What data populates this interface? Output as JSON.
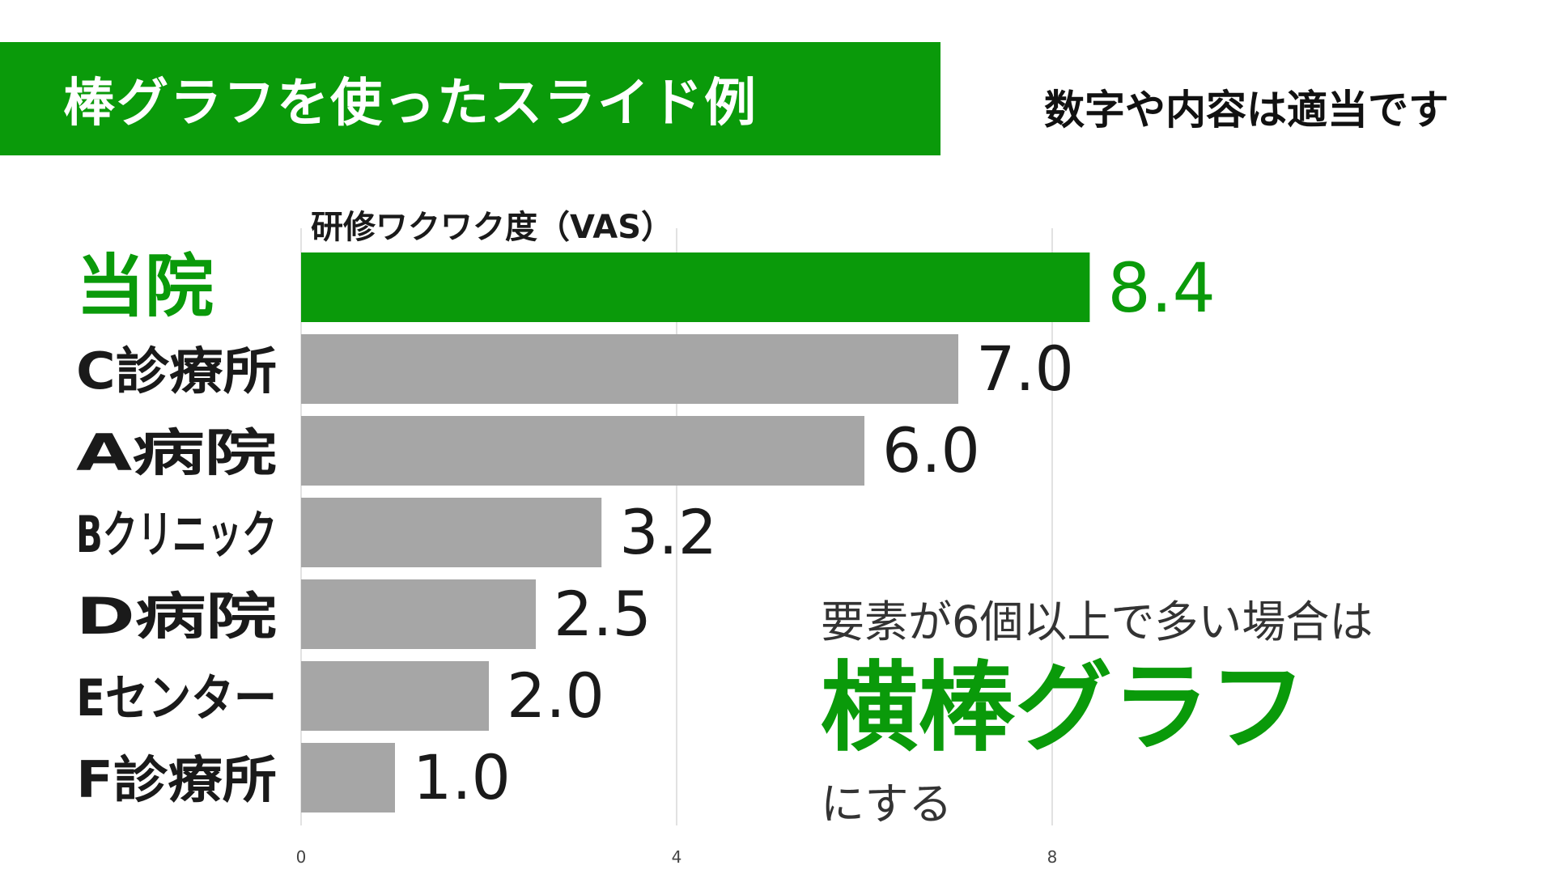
{
  "slide": {
    "title": "棒グラフを使ったスライド例",
    "note": "数字や内容は適当です",
    "callout": {
      "line1": "要素が6個以上で多い場合は",
      "line2": "横棒グラフ",
      "line3": "にする"
    }
  },
  "colors": {
    "accent": "#0a9a0a",
    "bar": "#a6a6a6",
    "grid": "#d9d9d9",
    "text": "#1a1a1a"
  },
  "chart_data": {
    "type": "bar",
    "orientation": "horizontal",
    "title": "研修ワクワク度（VAS）",
    "categories": [
      "当院",
      "C診療所",
      "A病院",
      "Bクリニック",
      "D病院",
      "Eセンター",
      "F診療所"
    ],
    "values": [
      8.4,
      7.0,
      6.0,
      3.2,
      2.5,
      2.0,
      1.0
    ],
    "value_labels": [
      "8.4",
      "7.0",
      "6.0",
      "3.2",
      "2.5",
      "2.0",
      "1.0"
    ],
    "highlight_index": 0,
    "xlim": [
      0,
      10
    ],
    "xticks": [
      0,
      4,
      8
    ],
    "grid": true,
    "legend": "none"
  }
}
